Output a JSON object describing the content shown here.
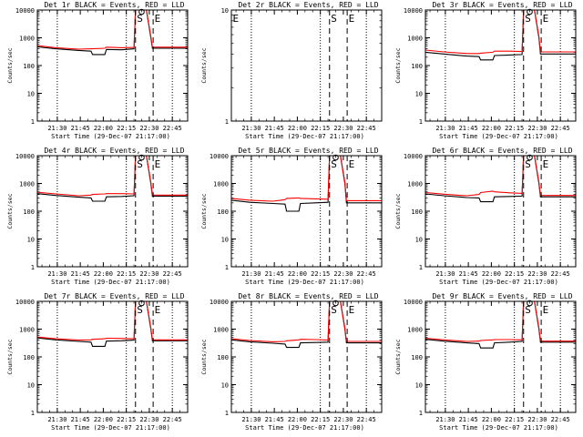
{
  "figure": {
    "background": "#ffffff",
    "event_color": "#000000",
    "lld_color": "#ff0000"
  },
  "chart_data": [
    {
      "type": "line",
      "title": "Det 1r BLACK = Events, RED = LLD",
      "xlabel": "Start Time (29-Dec-07 21:17:00)",
      "ylabel": "Counts/sec",
      "y_scale": "log",
      "ylim": [
        1,
        10000
      ],
      "y_tick_labels": [
        "1",
        "10",
        "100",
        "1000",
        "10000"
      ],
      "x_tick_labels": [
        "21:30",
        "21:45",
        "22:00",
        "22:15",
        "22:30",
        "22:45"
      ],
      "x_minutes": [
        13,
        28,
        43,
        58,
        73,
        88
      ],
      "xlim": [
        0,
        98
      ],
      "dotted_lines_min": [
        13,
        58,
        88
      ],
      "dashed_lines": [
        {
          "x": 64,
          "marker": "S"
        },
        {
          "x": 75.5,
          "marker": "E"
        }
      ],
      "has_data": true,
      "peak_x": 68,
      "series": [
        {
          "color": "#000000",
          "x": [
            0,
            12,
            27,
            35,
            36,
            44,
            45,
            55,
            63,
            64,
            65,
            71,
            74,
            75,
            98
          ],
          "y": [
            470,
            400,
            350,
            330,
            250,
            250,
            380,
            370,
            400,
            11000,
            11000,
            11000,
            1000,
            420,
            420
          ]
        },
        {
          "color": "#ff0000",
          "x": [
            0,
            12,
            27,
            35,
            36,
            44,
            45,
            55,
            63,
            64,
            65,
            71,
            74,
            75,
            98
          ],
          "y": [
            520,
            440,
            390,
            400,
            400,
            420,
            460,
            440,
            450,
            11000,
            11000,
            11000,
            1100,
            460,
            460
          ]
        }
      ]
    },
    {
      "type": "line",
      "title": "Det 2r BLACK = Events, RED = LLD",
      "xlabel": "Start Time (29-Dec-07 21:17:00)",
      "ylabel": "Counts/sec",
      "y_scale": "log",
      "ylim": [
        1,
        10
      ],
      "y_tick_labels": [
        "1",
        "10"
      ],
      "x_tick_labels": [
        "21:30",
        "21:45",
        "22:00",
        "22:15",
        "22:30",
        "22:45"
      ],
      "x_minutes": [
        13,
        28,
        43,
        58,
        73,
        88
      ],
      "xlim": [
        0,
        98
      ],
      "dotted_lines_min": [
        13,
        58,
        88
      ],
      "dashed_lines": [
        {
          "x": 0,
          "marker": "E"
        },
        {
          "x": 64,
          "marker": "S"
        },
        {
          "x": 75.5,
          "marker": "E"
        }
      ],
      "has_data": false,
      "series": []
    },
    {
      "type": "line",
      "title": "Det 3r BLACK = Events, RED = LLD",
      "xlabel": "Start Time (29-Dec-07 21:17:00)",
      "ylabel": "Counts/sec",
      "y_scale": "log",
      "ylim": [
        1,
        10000
      ],
      "y_tick_labels": [
        "1",
        "10",
        "100",
        "1000",
        "10000"
      ],
      "x_tick_labels": [
        "21:30",
        "21:45",
        "22:00",
        "22:15",
        "22:30",
        "22:45"
      ],
      "x_minutes": [
        13,
        28,
        43,
        58,
        73,
        88
      ],
      "xlim": [
        0,
        98
      ],
      "dotted_lines_min": [
        13,
        58,
        88
      ],
      "dashed_lines": [
        {
          "x": 64,
          "marker": "S"
        },
        {
          "x": 75.5,
          "marker": "E"
        }
      ],
      "has_data": true,
      "peak_x": 68,
      "series": [
        {
          "color": "#000000",
          "x": [
            0,
            12,
            27,
            35,
            36,
            44,
            45,
            55,
            63,
            64,
            65,
            71,
            74,
            75,
            98
          ],
          "y": [
            300,
            260,
            220,
            210,
            160,
            160,
            230,
            240,
            250,
            11000,
            11000,
            11000,
            1000,
            260,
            260
          ]
        },
        {
          "color": "#ff0000",
          "x": [
            0,
            12,
            27,
            35,
            36,
            44,
            45,
            55,
            63,
            64,
            65,
            71,
            74,
            75,
            98
          ],
          "y": [
            360,
            310,
            270,
            270,
            280,
            300,
            330,
            330,
            320,
            11000,
            11000,
            11000,
            1100,
            310,
            310
          ]
        }
      ]
    },
    {
      "type": "line",
      "title": "Det 4r BLACK = Events, RED = LLD",
      "xlabel": "Start Time (29-Dec-07 21:17:00)",
      "ylabel": "Counts/sec",
      "y_scale": "log",
      "ylim": [
        1,
        10000
      ],
      "y_tick_labels": [
        "1",
        "10",
        "100",
        "1000",
        "10000"
      ],
      "x_tick_labels": [
        "21:30",
        "21:45",
        "22:00",
        "22:15",
        "22:30",
        "22:45"
      ],
      "x_minutes": [
        13,
        28,
        43,
        58,
        73,
        88
      ],
      "xlim": [
        0,
        98
      ],
      "dotted_lines_min": [
        13,
        58,
        88
      ],
      "dashed_lines": [
        {
          "x": 64,
          "marker": "S"
        },
        {
          "x": 75.5,
          "marker": "E"
        }
      ],
      "has_data": true,
      "peak_x": 68,
      "series": [
        {
          "color": "#000000",
          "x": [
            0,
            12,
            27,
            35,
            36,
            44,
            45,
            55,
            63,
            64,
            65,
            71,
            74,
            75,
            98
          ],
          "y": [
            430,
            370,
            320,
            300,
            230,
            230,
            330,
            340,
            360,
            11000,
            11000,
            11000,
            1000,
            350,
            350
          ]
        },
        {
          "color": "#ff0000",
          "x": [
            0,
            12,
            27,
            35,
            36,
            44,
            45,
            55,
            63,
            64,
            65,
            71,
            74,
            75,
            98
          ],
          "y": [
            480,
            420,
            360,
            380,
            400,
            420,
            430,
            430,
            420,
            11000,
            11000,
            11000,
            1100,
            380,
            380
          ]
        }
      ]
    },
    {
      "type": "line",
      "title": "Det 5r BLACK = Events, RED = LLD",
      "xlabel": "Start Time (29-Dec-07 21:17:00)",
      "ylabel": "Counts/sec",
      "y_scale": "log",
      "ylim": [
        1,
        10000
      ],
      "y_tick_labels": [
        "1",
        "10",
        "100",
        "1000",
        "10000"
      ],
      "x_tick_labels": [
        "21:30",
        "21:45",
        "22:00",
        "22:15",
        "22:30",
        "22:45"
      ],
      "x_minutes": [
        13,
        28,
        43,
        58,
        73,
        88
      ],
      "xlim": [
        0,
        98
      ],
      "dotted_lines_min": [
        13,
        58,
        88
      ],
      "dashed_lines": [
        {
          "x": 64,
          "marker": "S"
        },
        {
          "x": 75.5,
          "marker": "E"
        }
      ],
      "has_data": true,
      "peak_x": 68,
      "series": [
        {
          "color": "#000000",
          "x": [
            0,
            12,
            27,
            35,
            36,
            44,
            45,
            55,
            63,
            64,
            65,
            71,
            74,
            75,
            98
          ],
          "y": [
            250,
            210,
            190,
            180,
            100,
            100,
            190,
            200,
            210,
            11000,
            11000,
            11000,
            1000,
            200,
            200
          ]
        },
        {
          "color": "#ff0000",
          "x": [
            0,
            12,
            27,
            35,
            36,
            44,
            45,
            55,
            63,
            64,
            65,
            71,
            74,
            75,
            98
          ],
          "y": [
            290,
            250,
            230,
            260,
            290,
            300,
            290,
            280,
            270,
            11000,
            11000,
            11000,
            1100,
            240,
            240
          ]
        }
      ]
    },
    {
      "type": "line",
      "title": "Det 6r BLACK = Events, RED = LLD",
      "xlabel": "Start Time (29-Dec-07 21:17:00)",
      "ylabel": "Counts/sec",
      "y_scale": "log",
      "ylim": [
        1,
        10000
      ],
      "y_tick_labels": [
        "1",
        "10",
        "100",
        "1000",
        "10000"
      ],
      "x_tick_labels": [
        "21:30",
        "21:45",
        "22:00",
        "22:15",
        "22:30",
        "22:45"
      ],
      "x_minutes": [
        13,
        28,
        43,
        58,
        73,
        88
      ],
      "xlim": [
        0,
        98
      ],
      "dotted_lines_min": [
        13,
        58,
        88
      ],
      "dashed_lines": [
        {
          "x": 64,
          "marker": "S"
        },
        {
          "x": 75.5,
          "marker": "E"
        }
      ],
      "has_data": true,
      "peak_x": 68,
      "series": [
        {
          "color": "#000000",
          "x": [
            0,
            12,
            27,
            35,
            36,
            44,
            45,
            55,
            63,
            64,
            65,
            71,
            74,
            75,
            98
          ],
          "y": [
            420,
            360,
            310,
            300,
            220,
            220,
            330,
            340,
            350,
            11000,
            11000,
            11000,
            1000,
            330,
            330
          ]
        },
        {
          "color": "#ff0000",
          "x": [
            0,
            12,
            27,
            35,
            36,
            44,
            45,
            55,
            63,
            64,
            65,
            71,
            74,
            75,
            98
          ],
          "y": [
            470,
            410,
            360,
            400,
            470,
            530,
            500,
            460,
            440,
            11000,
            11000,
            11000,
            1100,
            370,
            370
          ]
        }
      ]
    },
    {
      "type": "line",
      "title": "Det 7r BLACK = Events, RED = LLD",
      "xlabel": "Start Time (29-Dec-07 21:17:00)",
      "ylabel": "Counts/sec",
      "y_scale": "log",
      "ylim": [
        1,
        10000
      ],
      "y_tick_labels": [
        "1",
        "10",
        "100",
        "1000",
        "10000"
      ],
      "x_tick_labels": [
        "21:30",
        "21:45",
        "22:00",
        "22:15",
        "22:30",
        "22:45"
      ],
      "x_minutes": [
        13,
        28,
        43,
        58,
        73,
        88
      ],
      "xlim": [
        0,
        98
      ],
      "dotted_lines_min": [
        13,
        58,
        88
      ],
      "dashed_lines": [
        {
          "x": 64,
          "marker": "S"
        },
        {
          "x": 75.5,
          "marker": "E"
        }
      ],
      "has_data": true,
      "peak_x": 68,
      "series": [
        {
          "color": "#000000",
          "x": [
            0,
            12,
            27,
            35,
            36,
            44,
            45,
            55,
            63,
            64,
            65,
            71,
            74,
            75,
            98
          ],
          "y": [
            480,
            410,
            360,
            340,
            240,
            240,
            370,
            380,
            400,
            11000,
            11000,
            11000,
            1000,
            380,
            380
          ]
        },
        {
          "color": "#ff0000",
          "x": [
            0,
            12,
            27,
            35,
            36,
            44,
            45,
            55,
            63,
            64,
            65,
            71,
            74,
            75,
            98
          ],
          "y": [
            520,
            450,
            400,
            410,
            430,
            450,
            470,
            460,
            450,
            11000,
            11000,
            11000,
            1100,
            410,
            410
          ]
        }
      ]
    },
    {
      "type": "line",
      "title": "Det 8r BLACK = Events, RED = LLD",
      "xlabel": "Start Time (29-Dec-07 21:17:00)",
      "ylabel": "Counts/sec",
      "y_scale": "log",
      "ylim": [
        1,
        10000
      ],
      "y_tick_labels": [
        "1",
        "10",
        "100",
        "1000",
        "10000"
      ],
      "x_tick_labels": [
        "21:30",
        "21:45",
        "22:00",
        "22:15",
        "22:30",
        "22:45"
      ],
      "x_minutes": [
        13,
        28,
        43,
        58,
        73,
        88
      ],
      "xlim": [
        0,
        98
      ],
      "dotted_lines_min": [
        13,
        58,
        88
      ],
      "dashed_lines": [
        {
          "x": 64,
          "marker": "S"
        },
        {
          "x": 75.5,
          "marker": "E"
        }
      ],
      "has_data": true,
      "peak_x": 68,
      "series": [
        {
          "color": "#000000",
          "x": [
            0,
            12,
            27,
            35,
            36,
            44,
            45,
            55,
            63,
            64,
            65,
            71,
            74,
            75,
            98
          ],
          "y": [
            410,
            350,
            310,
            290,
            220,
            220,
            320,
            330,
            340,
            11000,
            11000,
            11000,
            1000,
            320,
            320
          ]
        },
        {
          "color": "#ff0000",
          "x": [
            0,
            12,
            27,
            35,
            36,
            44,
            45,
            55,
            63,
            64,
            65,
            71,
            74,
            75,
            98
          ],
          "y": [
            450,
            390,
            350,
            360,
            380,
            410,
            430,
            420,
            400,
            11000,
            11000,
            11000,
            1100,
            360,
            360
          ]
        }
      ]
    },
    {
      "type": "line",
      "title": "Det 9r BLACK = Events, RED = LLD",
      "xlabel": "Start Time (29-Dec-07 21:17:00)",
      "ylabel": "Counts/sec",
      "y_scale": "log",
      "ylim": [
        1,
        10000
      ],
      "y_tick_labels": [
        "1",
        "10",
        "100",
        "1000",
        "10000"
      ],
      "x_tick_labels": [
        "21:30",
        "21:45",
        "22:00",
        "22:15",
        "22:30",
        "22:45"
      ],
      "x_minutes": [
        13,
        28,
        43,
        58,
        73,
        88
      ],
      "xlim": [
        0,
        98
      ],
      "dotted_lines_min": [
        13,
        58,
        88
      ],
      "dashed_lines": [
        {
          "x": 64,
          "marker": "S"
        },
        {
          "x": 75.5,
          "marker": "E"
        }
      ],
      "has_data": true,
      "peak_x": 68,
      "series": [
        {
          "color": "#000000",
          "x": [
            0,
            12,
            27,
            35,
            36,
            44,
            45,
            55,
            63,
            64,
            65,
            71,
            74,
            75,
            98
          ],
          "y": [
            430,
            370,
            320,
            300,
            210,
            210,
            320,
            340,
            360,
            11000,
            11000,
            11000,
            1000,
            340,
            340
          ]
        },
        {
          "color": "#ff0000",
          "x": [
            0,
            12,
            27,
            35,
            36,
            44,
            45,
            55,
            63,
            64,
            65,
            71,
            74,
            75,
            98
          ],
          "y": [
            470,
            410,
            360,
            370,
            390,
            410,
            420,
            420,
            410,
            11000,
            11000,
            11000,
            1100,
            370,
            370
          ]
        }
      ]
    }
  ]
}
